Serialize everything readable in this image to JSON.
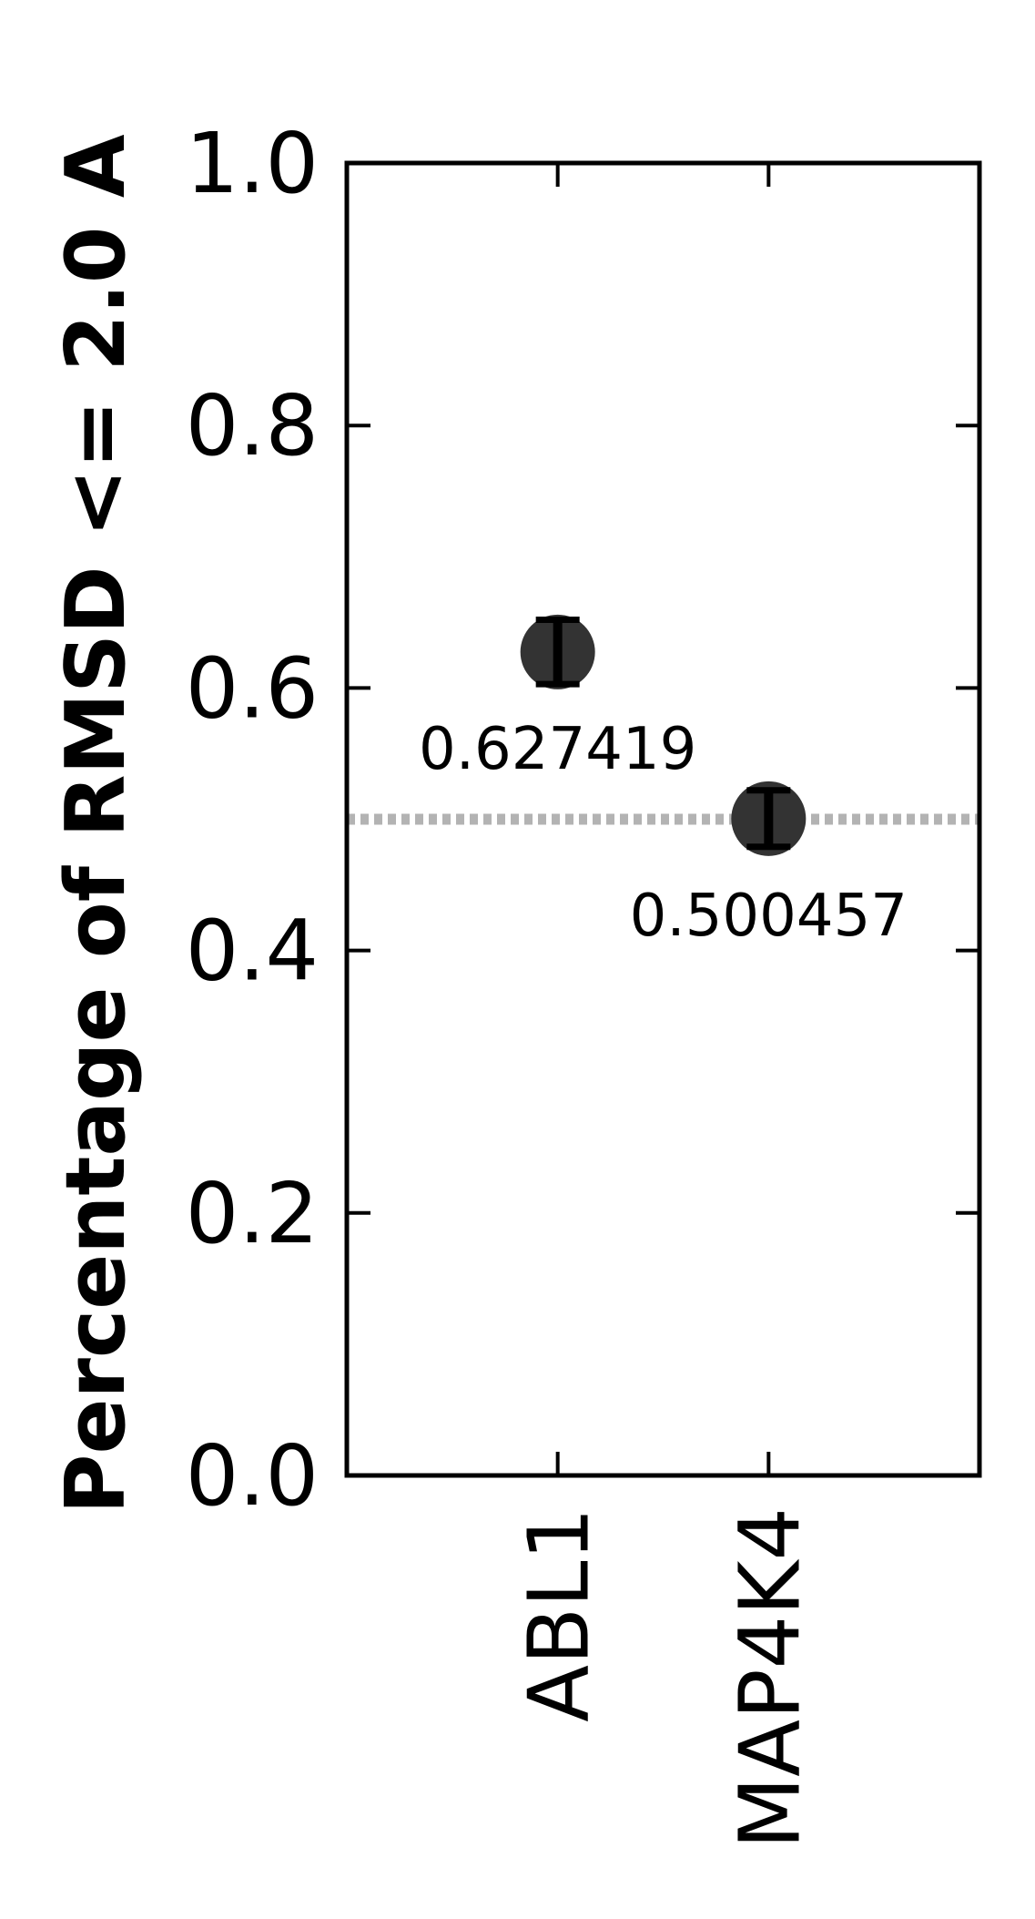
{
  "chart_data": {
    "type": "scatter",
    "categories": [
      "ABL1",
      "MAP4K4"
    ],
    "values": [
      0.627419,
      0.500457
    ],
    "error_bars": [
      {
        "low": 0.603,
        "high": 0.652
      },
      {
        "low": 0.479,
        "high": 0.522
      }
    ],
    "data_labels": [
      "0.627419",
      "0.500457"
    ],
    "reference_line": 0.5,
    "title": "",
    "xlabel": "",
    "ylabel": "Percentage of RMSD <= 2.0 A",
    "ylim": [
      0.0,
      1.0
    ],
    "yticks": [
      "0.0",
      "0.2",
      "0.4",
      "0.6",
      "0.8",
      "1.0"
    ],
    "xlim": [
      -1,
      2
    ],
    "grid": false,
    "colors": {
      "marker": "#333333",
      "error_bar": "#000000",
      "reference_line": "#b3b3b3",
      "axes": "#000000"
    }
  }
}
